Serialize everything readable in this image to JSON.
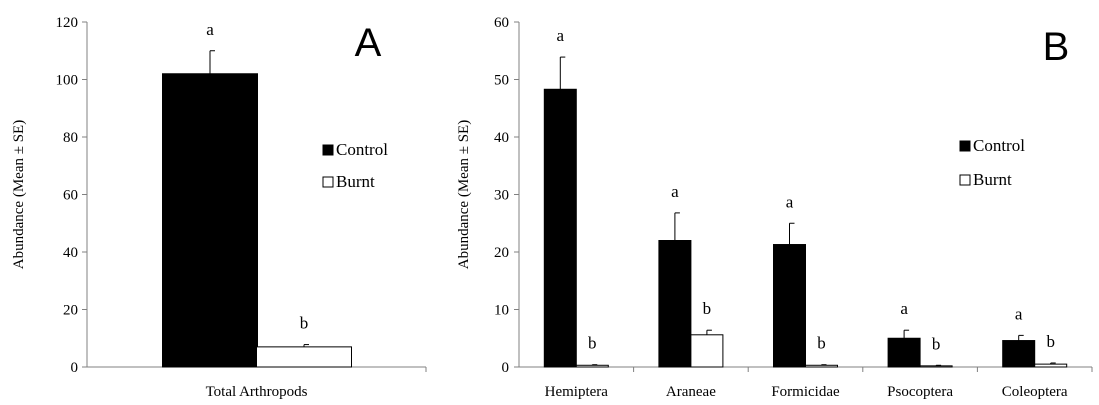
{
  "colors": {
    "control": "#000000",
    "burnt": "#ffffff",
    "stroke": "#000000",
    "axis": "#808080"
  },
  "chart_data": [
    {
      "type": "bar",
      "panel_label": "A",
      "categories": [
        "Total Arthropods"
      ],
      "series": [
        {
          "name": "Control",
          "values": [
            102
          ],
          "errors": [
            8
          ],
          "letters": [
            "a"
          ]
        },
        {
          "name": "Burnt",
          "values": [
            7
          ],
          "errors": [
            0.8
          ],
          "letters": [
            "b"
          ]
        }
      ],
      "ylabel": "Abundance (Mean ± SE)",
      "ylim": [
        0,
        120
      ],
      "yticks": [
        "0",
        "20",
        "40",
        "60",
        "80",
        "100",
        "120"
      ],
      "grid": false,
      "legend_position": "right"
    },
    {
      "type": "bar",
      "panel_label": "B",
      "categories": [
        "Hemiptera",
        "Araneae",
        "Formicidae",
        "Psocoptera",
        "Coleoptera"
      ],
      "series": [
        {
          "name": "Control",
          "values": [
            48.3,
            22.0,
            21.3,
            5.0,
            4.6
          ],
          "errors": [
            5.6,
            4.8,
            3.7,
            1.4,
            0.9
          ],
          "letters": [
            "a",
            "a",
            "a",
            "a",
            "a"
          ]
        },
        {
          "name": "Burnt",
          "values": [
            0.3,
            5.6,
            0.3,
            0.2,
            0.5
          ],
          "errors": [
            0.1,
            0.8,
            0.1,
            0.1,
            0.2
          ],
          "letters": [
            "b",
            "b",
            "b",
            "b",
            "b"
          ]
        }
      ],
      "ylabel": "Abundance (Mean ± SE)",
      "ylim": [
        0,
        60
      ],
      "yticks": [
        "0",
        "10",
        "20",
        "30",
        "40",
        "50",
        "60"
      ],
      "grid": false,
      "legend_position": "top-right"
    }
  ]
}
